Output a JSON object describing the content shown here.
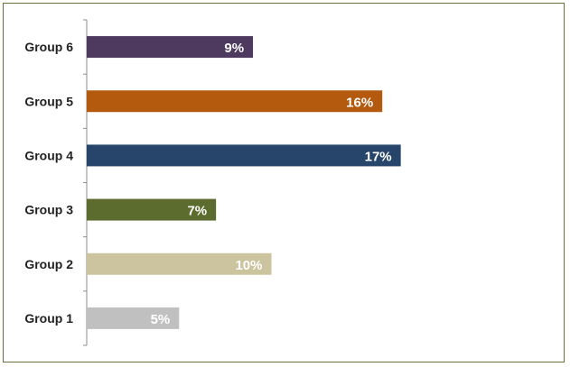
{
  "chart_data": {
    "type": "bar",
    "orientation": "horizontal",
    "categories": [
      "Group 1",
      "Group 2",
      "Group 3",
      "Group 4",
      "Group 5",
      "Group 6"
    ],
    "values": [
      5,
      10,
      7,
      17,
      16,
      9
    ],
    "data_labels": [
      "5%",
      "10%",
      "7%",
      "17%",
      "16%",
      "9%"
    ],
    "colors": [
      "#c0c0c0",
      "#cbc49f",
      "#5c6b2e",
      "#27446a",
      "#b35a0f",
      "#4e3a5e"
    ],
    "unit": "%",
    "xlim": [
      0,
      25
    ],
    "grid": false,
    "legend": "none"
  }
}
